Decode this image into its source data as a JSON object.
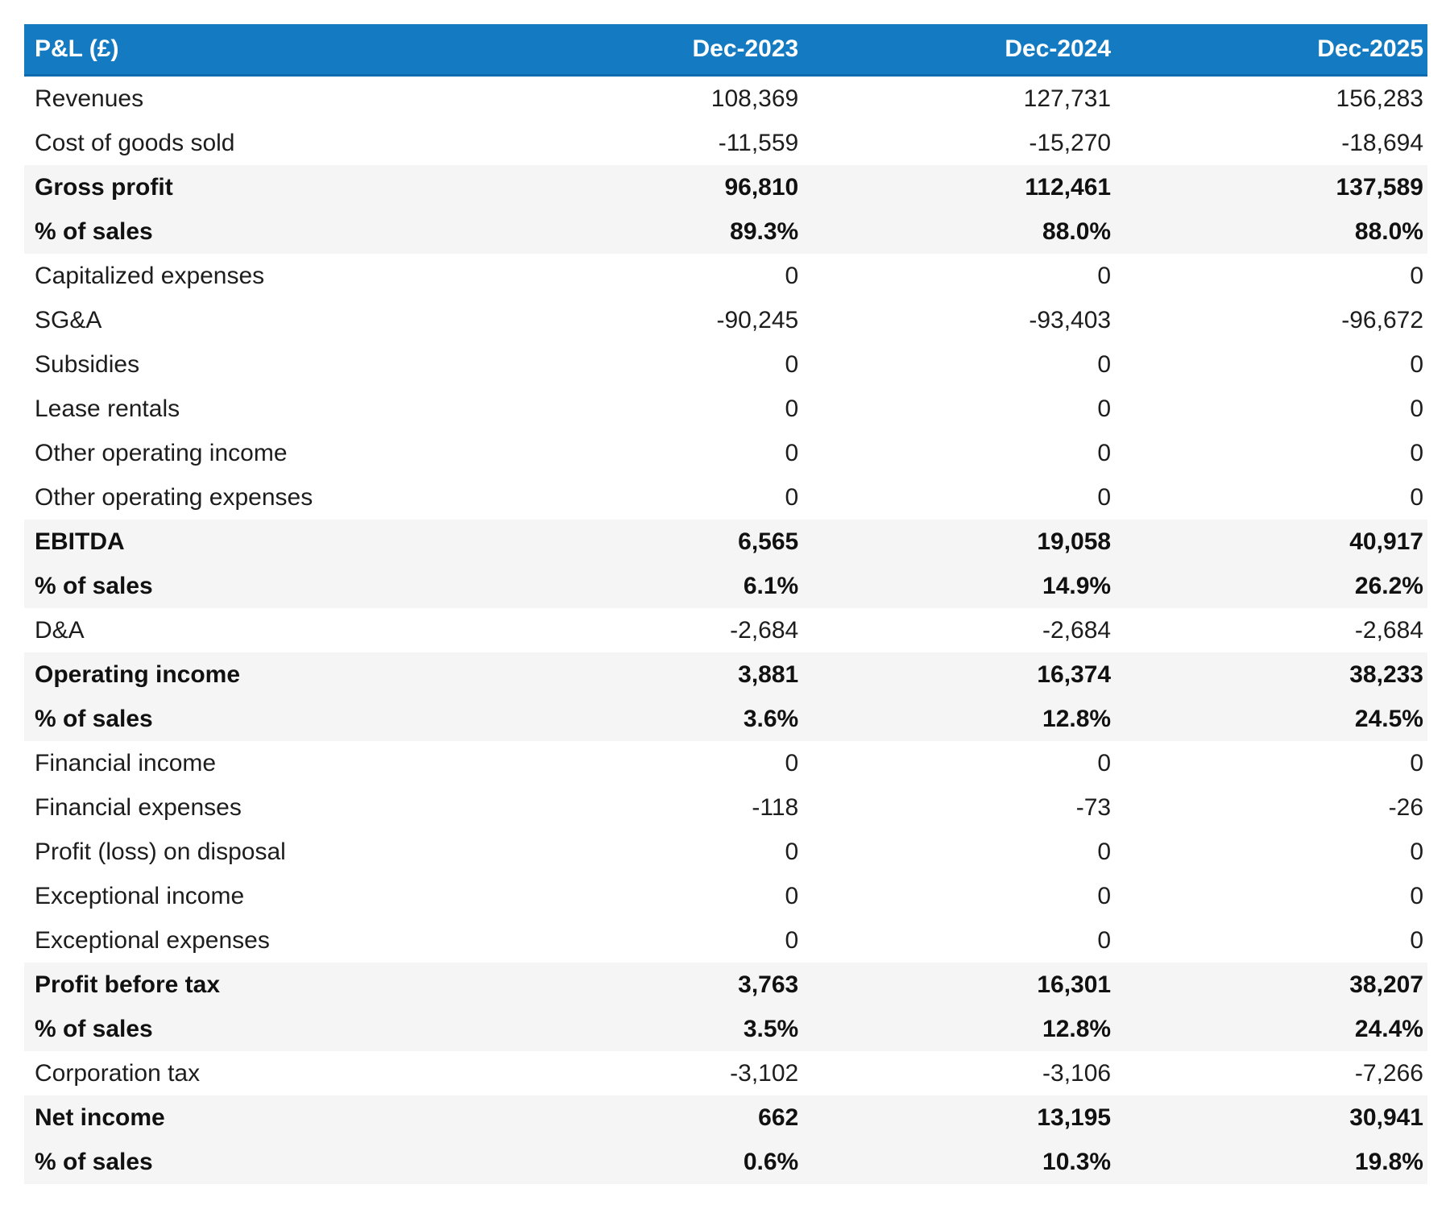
{
  "colors": {
    "header_bg": "#147ac1",
    "header_border": "#0e6aae",
    "subtotal_bg": "#f5f5f5",
    "header_text": "#ffffff",
    "body_text": "#1d1d1d"
  },
  "chart_data": {
    "type": "table",
    "title": "P&L (£)",
    "columns": [
      "Dec-2023",
      "Dec-2024",
      "Dec-2025"
    ],
    "rows": [
      {
        "label": "Revenues",
        "values": [
          "108,369",
          "127,731",
          "156,283"
        ],
        "emphasis": false
      },
      {
        "label": "Cost of goods sold",
        "values": [
          "-11,559",
          "-15,270",
          "-18,694"
        ],
        "emphasis": false
      },
      {
        "label": "Gross profit",
        "values": [
          "96,810",
          "112,461",
          "137,589"
        ],
        "emphasis": true
      },
      {
        "label": "% of sales",
        "values": [
          "89.3%",
          "88.0%",
          "88.0%"
        ],
        "emphasis": true
      },
      {
        "label": "Capitalized expenses",
        "values": [
          "0",
          "0",
          "0"
        ],
        "emphasis": false
      },
      {
        "label": "SG&A",
        "values": [
          "-90,245",
          "-93,403",
          "-96,672"
        ],
        "emphasis": false
      },
      {
        "label": "Subsidies",
        "values": [
          "0",
          "0",
          "0"
        ],
        "emphasis": false
      },
      {
        "label": "Lease rentals",
        "values": [
          "0",
          "0",
          "0"
        ],
        "emphasis": false
      },
      {
        "label": "Other operating income",
        "values": [
          "0",
          "0",
          "0"
        ],
        "emphasis": false
      },
      {
        "label": "Other operating expenses",
        "values": [
          "0",
          "0",
          "0"
        ],
        "emphasis": false
      },
      {
        "label": "EBITDA",
        "values": [
          "6,565",
          "19,058",
          "40,917"
        ],
        "emphasis": true
      },
      {
        "label": "% of sales",
        "values": [
          "6.1%",
          "14.9%",
          "26.2%"
        ],
        "emphasis": true
      },
      {
        "label": "D&A",
        "values": [
          "-2,684",
          "-2,684",
          "-2,684"
        ],
        "emphasis": false
      },
      {
        "label": "Operating income",
        "values": [
          "3,881",
          "16,374",
          "38,233"
        ],
        "emphasis": true
      },
      {
        "label": "% of sales",
        "values": [
          "3.6%",
          "12.8%",
          "24.5%"
        ],
        "emphasis": true
      },
      {
        "label": "Financial income",
        "values": [
          "0",
          "0",
          "0"
        ],
        "emphasis": false
      },
      {
        "label": "Financial expenses",
        "values": [
          "-118",
          "-73",
          "-26"
        ],
        "emphasis": false
      },
      {
        "label": "Profit (loss) on disposal",
        "values": [
          "0",
          "0",
          "0"
        ],
        "emphasis": false
      },
      {
        "label": "Exceptional income",
        "values": [
          "0",
          "0",
          "0"
        ],
        "emphasis": false
      },
      {
        "label": "Exceptional expenses",
        "values": [
          "0",
          "0",
          "0"
        ],
        "emphasis": false
      },
      {
        "label": "Profit before tax",
        "values": [
          "3,763",
          "16,301",
          "38,207"
        ],
        "emphasis": true
      },
      {
        "label": "% of sales",
        "values": [
          "3.5%",
          "12.8%",
          "24.4%"
        ],
        "emphasis": true
      },
      {
        "label": "Corporation tax",
        "values": [
          "-3,102",
          "-3,106",
          "-7,266"
        ],
        "emphasis": false
      },
      {
        "label": "Net income",
        "values": [
          "662",
          "13,195",
          "30,941"
        ],
        "emphasis": true
      },
      {
        "label": "% of sales",
        "values": [
          "0.6%",
          "10.3%",
          "19.8%"
        ],
        "emphasis": true
      }
    ]
  }
}
